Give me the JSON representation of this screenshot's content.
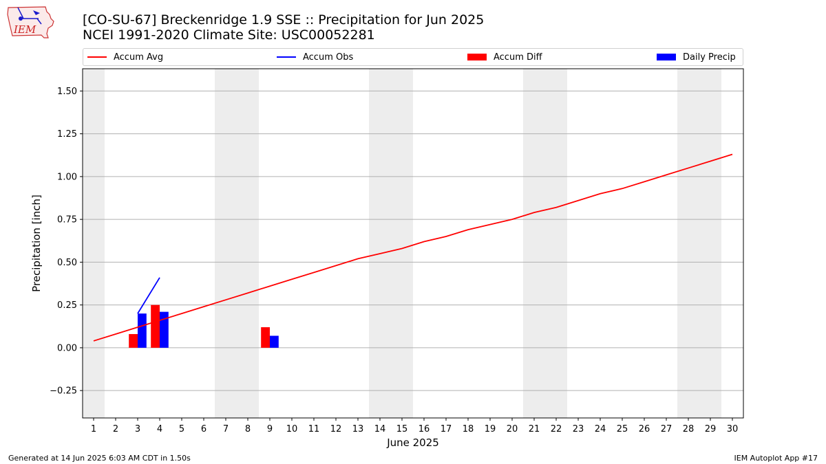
{
  "header": {
    "title_line1": "[CO-SU-67] Breckenridge 1.9 SSE :: Precipitation for Jun 2025",
    "title_line2": "NCEI 1991-2020 Climate Site: USC00052281",
    "logo_text": "IEM"
  },
  "legend": {
    "items": [
      {
        "label": "Accum Avg",
        "color": "#ff0000",
        "kind": "line"
      },
      {
        "label": "Accum Obs",
        "color": "#0000ff",
        "kind": "line"
      },
      {
        "label": "Accum Diff",
        "color": "#ff0000",
        "kind": "bar"
      },
      {
        "label": "Daily Precip",
        "color": "#0000ff",
        "kind": "bar"
      }
    ]
  },
  "footer": {
    "left": "Generated at 14 Jun 2025 6:03 AM CDT in 1.50s",
    "right": "IEM Autoplot App #17"
  },
  "chart_data": {
    "type": "bar",
    "title": "[CO-SU-67] Breckenridge 1.9 SSE :: Precipitation for Jun 2025",
    "subtitle": "NCEI 1991-2020 Climate Site: USC00052281",
    "xlabel": "June 2025",
    "ylabel": "Precipitation [inch]",
    "xlim": [
      0.5,
      30.5
    ],
    "ylim": [
      -0.41,
      1.63
    ],
    "x_ticks": [
      1,
      2,
      3,
      4,
      5,
      6,
      7,
      8,
      9,
      10,
      11,
      12,
      13,
      14,
      15,
      16,
      17,
      18,
      19,
      20,
      21,
      22,
      23,
      24,
      25,
      26,
      27,
      28,
      29,
      30
    ],
    "y_ticks": [
      -0.25,
      0.0,
      0.25,
      0.5,
      0.75,
      1.0,
      1.25,
      1.5
    ],
    "y_tick_labels": [
      "−0.25",
      "0.00",
      "0.25",
      "0.50",
      "0.75",
      "1.00",
      "1.25",
      "1.50"
    ],
    "grid": "horizontal",
    "legend_position": "top",
    "weekend_shading": [
      [
        0.5,
        1.5
      ],
      [
        6.5,
        8.5
      ],
      [
        13.5,
        15.5
      ],
      [
        20.5,
        22.5
      ],
      [
        27.5,
        29.5
      ]
    ],
    "series": [
      {
        "name": "Accum Avg",
        "type": "line",
        "color": "#ff0000",
        "x": [
          1,
          2,
          3,
          4,
          5,
          6,
          7,
          8,
          9,
          10,
          11,
          12,
          13,
          14,
          15,
          16,
          17,
          18,
          19,
          20,
          21,
          22,
          23,
          24,
          25,
          26,
          27,
          28,
          29,
          30
        ],
        "values": [
          0.04,
          0.08,
          0.12,
          0.16,
          0.2,
          0.24,
          0.28,
          0.32,
          0.36,
          0.4,
          0.44,
          0.48,
          0.52,
          0.55,
          0.58,
          0.62,
          0.65,
          0.69,
          0.72,
          0.75,
          0.79,
          0.82,
          0.86,
          0.9,
          0.93,
          0.97,
          1.01,
          1.05,
          1.09,
          1.13
        ]
      },
      {
        "name": "Accum Obs",
        "type": "line",
        "color": "#0000ff",
        "x": [
          3,
          4
        ],
        "values": [
          0.2,
          0.41
        ]
      },
      {
        "name": "Accum Diff",
        "type": "bar",
        "color": "#ff0000",
        "x": [
          3,
          4,
          9
        ],
        "values": [
          0.08,
          0.25,
          0.12
        ]
      },
      {
        "name": "Daily Precip",
        "type": "bar",
        "color": "#0000ff",
        "x": [
          3,
          4,
          9
        ],
        "values": [
          0.2,
          0.21,
          0.07
        ]
      }
    ]
  }
}
